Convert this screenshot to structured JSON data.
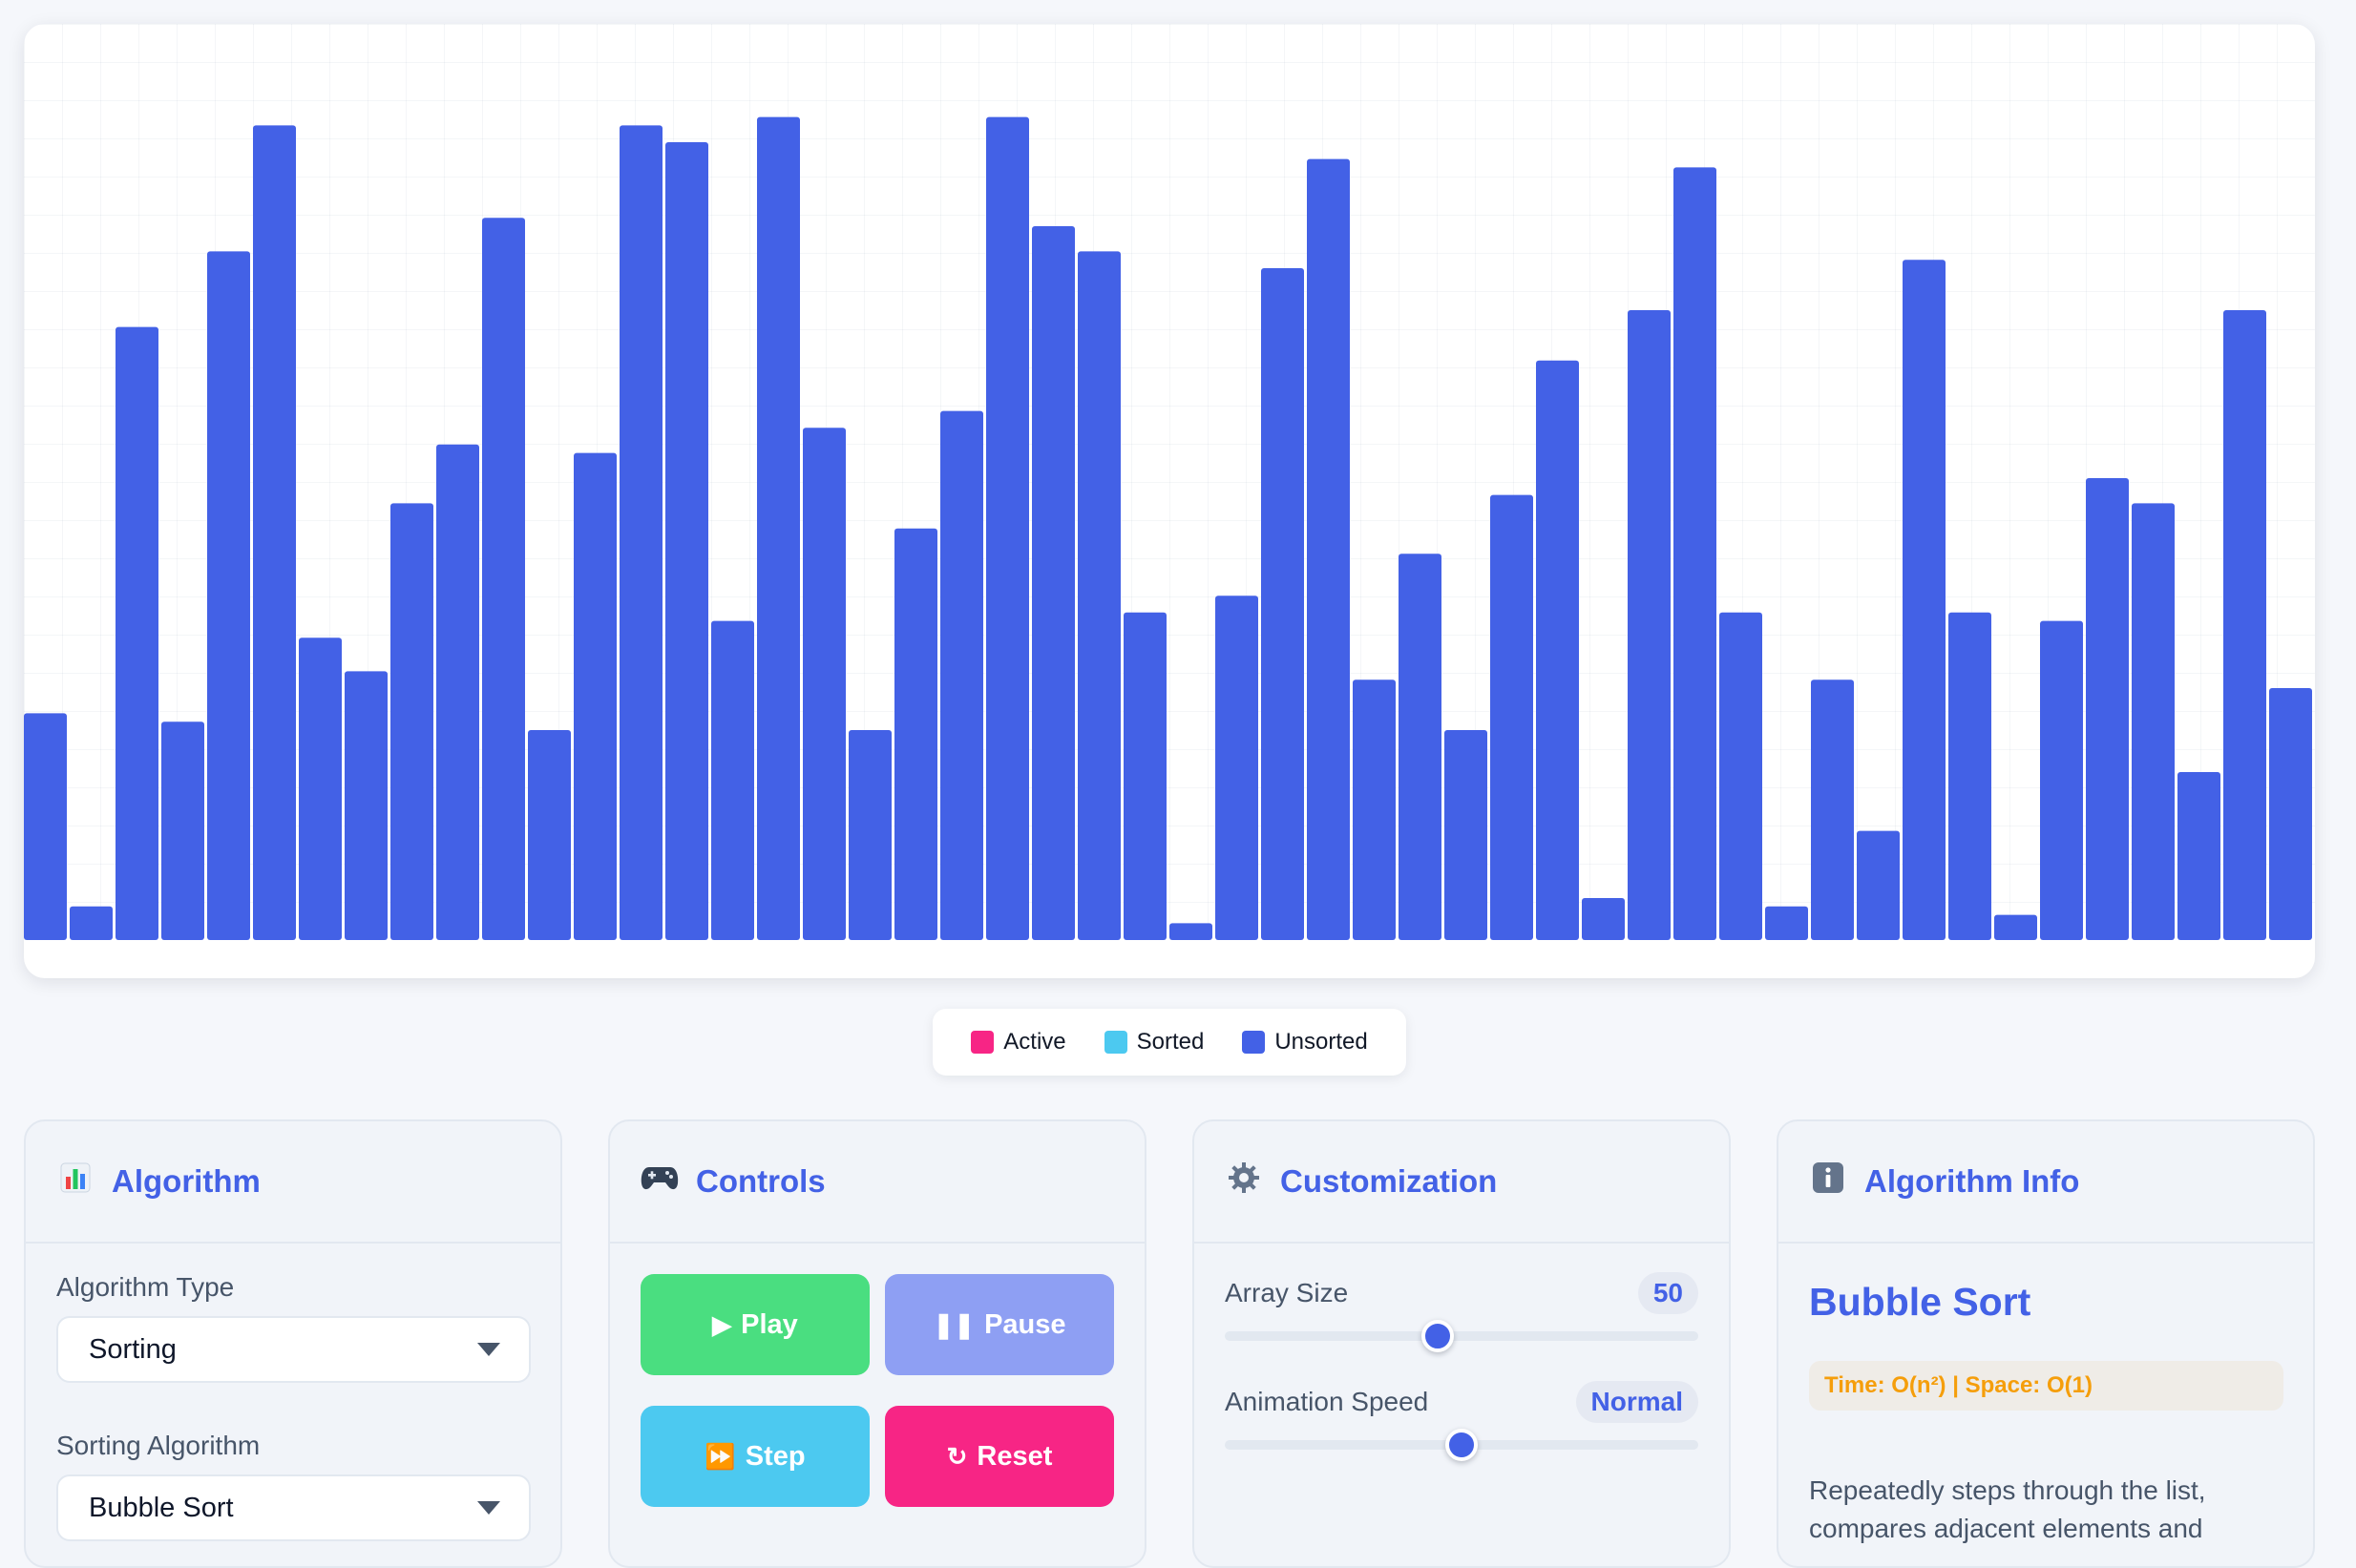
{
  "chart_data": {
    "type": "bar",
    "title": "",
    "ylim": [
      0,
      100
    ],
    "values": [
      27,
      4,
      73,
      26,
      82,
      97,
      36,
      32,
      52,
      59,
      86,
      25,
      58,
      97,
      95,
      38,
      98,
      61,
      25,
      49,
      63,
      98,
      85,
      82,
      39,
      2,
      41,
      80,
      93,
      31,
      46,
      25,
      53,
      69,
      5,
      75,
      92,
      39,
      4,
      31,
      13,
      81,
      39,
      3,
      38,
      55,
      52,
      20,
      75,
      30
    ],
    "states": "all-unsorted",
    "colors": {
      "active": "#f72585",
      "sorted": "#4cc9f0",
      "unsorted": "#4361e6"
    }
  },
  "legend": {
    "active": "Active",
    "sorted": "Sorted",
    "unsorted": "Unsorted"
  },
  "algorithm_panel": {
    "icon": "bar-chart-icon",
    "title": "Algorithm",
    "type_label": "Algorithm Type",
    "type_value": "Sorting",
    "algo_label": "Sorting Algorithm",
    "algo_value": "Bubble Sort"
  },
  "controls_panel": {
    "icon": "gamepad-icon",
    "title": "Controls",
    "play": "Play",
    "pause": "Pause",
    "step": "Step",
    "reset": "Reset"
  },
  "custom_panel": {
    "icon": "gear-icon",
    "title": "Customization",
    "array_size_label": "Array Size",
    "array_size_value": "50",
    "array_size_fraction": 0.45,
    "speed_label": "Animation Speed",
    "speed_value": "Normal",
    "speed_fraction": 0.5
  },
  "info_panel": {
    "icon": "info-icon",
    "title": "Algorithm Info",
    "name": "Bubble Sort",
    "complexity": "Time: O(n²) | Space: O(1)",
    "description": "Repeatedly steps through the list, compares adjacent elements and"
  }
}
